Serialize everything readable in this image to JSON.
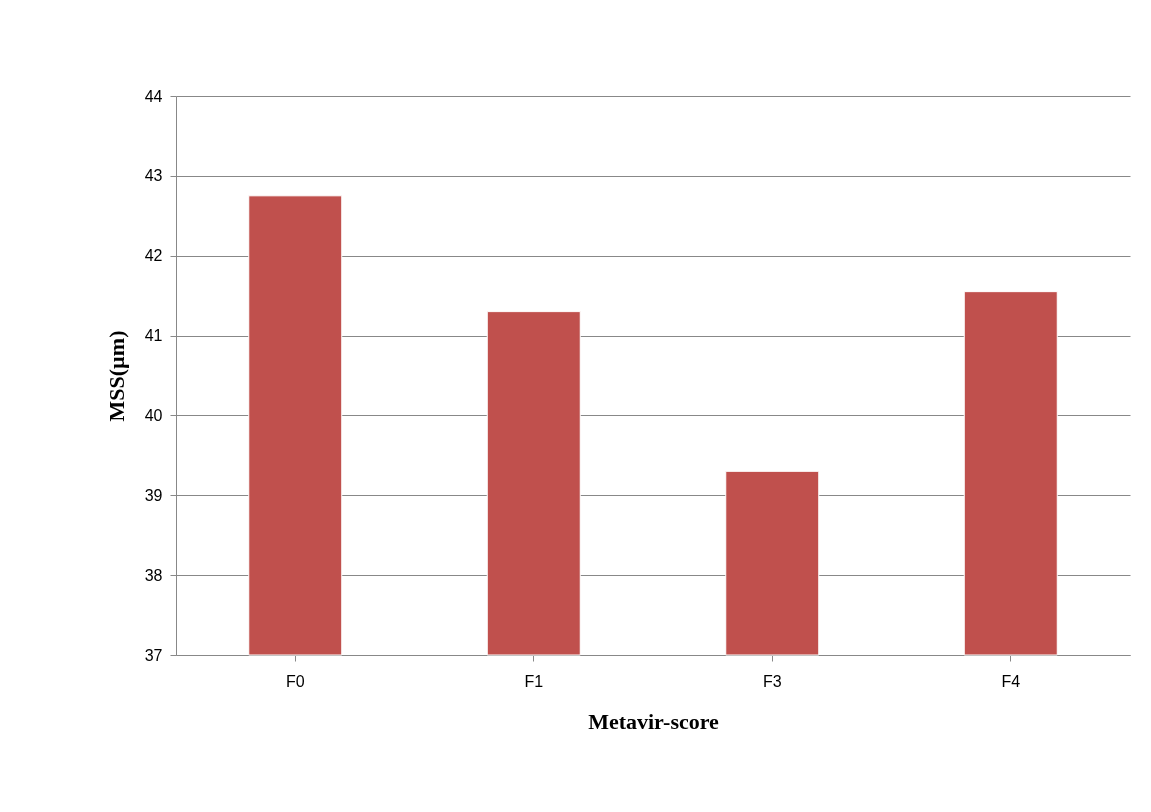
{
  "chart_data": {
    "type": "bar",
    "xlabel": "Metavir-score",
    "ylabel": "MSS(µm)",
    "categories": [
      "F0",
      "F1",
      "F3",
      "F4"
    ],
    "values": [
      42.75,
      41.3,
      39.3,
      41.55
    ],
    "color": "#c0504d",
    "ylim": [
      37,
      44
    ],
    "yticks": [
      37,
      38,
      39,
      40,
      41,
      42,
      43,
      44
    ],
    "grid": "y"
  }
}
